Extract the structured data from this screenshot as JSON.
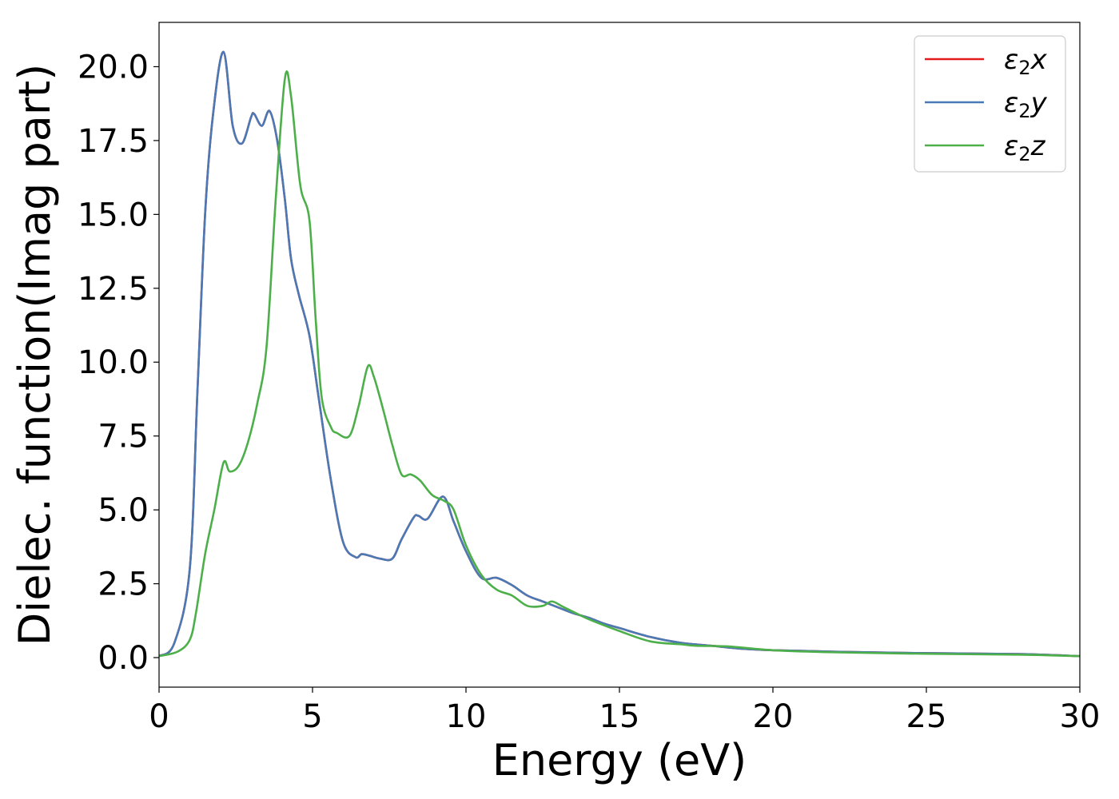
{
  "chart_data": {
    "type": "line",
    "xlabel": "Energy (eV)",
    "ylabel": "Dielec. function(Imag part)",
    "xlim": [
      0,
      30
    ],
    "ylim": [
      -1.0,
      21.5
    ],
    "xticks": [
      0,
      5,
      10,
      15,
      20,
      25,
      30
    ],
    "xtick_labels": [
      "0",
      "5",
      "10",
      "15",
      "20",
      "25",
      "30"
    ],
    "yticks": [
      0,
      2.5,
      5,
      7.5,
      10,
      12.5,
      15,
      17.5,
      20
    ],
    "ytick_labels": [
      "0.0",
      "2.5",
      "5.0",
      "7.5",
      "10.0",
      "12.5",
      "15.0",
      "17.5",
      "20.0"
    ],
    "grid": false,
    "legend_position": "top-right",
    "series": [
      {
        "name": "ε2x",
        "legend_base": "ε",
        "legend_sub": "2",
        "legend_var": "x",
        "color": "#e41a1c",
        "x": [
          0,
          0.5,
          1.0,
          1.25,
          1.5,
          1.75,
          2.1,
          2.4,
          2.7,
          3.0,
          3.1,
          3.35,
          3.6,
          3.85,
          4.1,
          4.3,
          4.55,
          4.9,
          5.2,
          5.6,
          6.0,
          6.4,
          6.6,
          6.85,
          7.2,
          7.6,
          7.9,
          8.3,
          8.45,
          8.75,
          9.25,
          9.6,
          10.0,
          10.5,
          11.0,
          11.5,
          12.0,
          12.5,
          13.0,
          13.5,
          14.0,
          14.5,
          15.0,
          16.0,
          17.0,
          18.0,
          19.0,
          20.0,
          22.0,
          25.0,
          28.0,
          30.0
        ],
        "values": [
          0.05,
          0.5,
          3.0,
          9.0,
          15.0,
          18.3,
          20.5,
          18.0,
          17.4,
          18.3,
          18.4,
          18.0,
          18.5,
          17.5,
          15.5,
          13.5,
          12.3,
          10.9,
          8.8,
          6.0,
          3.9,
          3.4,
          3.5,
          3.45,
          3.35,
          3.35,
          4.0,
          4.75,
          4.8,
          4.7,
          5.45,
          4.6,
          3.6,
          2.7,
          2.7,
          2.45,
          2.1,
          1.9,
          1.7,
          1.5,
          1.35,
          1.15,
          1.0,
          0.7,
          0.5,
          0.4,
          0.3,
          0.25,
          0.2,
          0.15,
          0.12,
          0.05
        ]
      },
      {
        "name": "ε2y",
        "legend_base": "ε",
        "legend_sub": "2",
        "legend_var": "y",
        "color": "#4a7ab5",
        "x": [
          0,
          0.5,
          1.0,
          1.25,
          1.5,
          1.75,
          2.1,
          2.4,
          2.7,
          3.0,
          3.1,
          3.35,
          3.6,
          3.85,
          4.1,
          4.3,
          4.55,
          4.9,
          5.2,
          5.6,
          6.0,
          6.4,
          6.6,
          6.85,
          7.2,
          7.6,
          7.9,
          8.3,
          8.45,
          8.75,
          9.25,
          9.6,
          10.0,
          10.5,
          11.0,
          11.5,
          12.0,
          12.5,
          13.0,
          13.5,
          14.0,
          14.5,
          15.0,
          16.0,
          17.0,
          18.0,
          19.0,
          20.0,
          22.0,
          25.0,
          28.0,
          30.0
        ],
        "values": [
          0.05,
          0.5,
          3.0,
          9.0,
          15.0,
          18.3,
          20.5,
          18.0,
          17.4,
          18.3,
          18.4,
          18.0,
          18.5,
          17.5,
          15.5,
          13.5,
          12.3,
          10.9,
          8.8,
          6.0,
          3.9,
          3.4,
          3.5,
          3.45,
          3.35,
          3.35,
          4.0,
          4.75,
          4.8,
          4.7,
          5.45,
          4.6,
          3.6,
          2.7,
          2.7,
          2.45,
          2.1,
          1.9,
          1.7,
          1.5,
          1.35,
          1.15,
          1.0,
          0.7,
          0.5,
          0.4,
          0.3,
          0.25,
          0.2,
          0.15,
          0.12,
          0.05
        ]
      },
      {
        "name": "ε2z",
        "legend_base": "ε",
        "legend_sub": "2",
        "legend_var": "z",
        "color": "#4daf4a",
        "x": [
          0,
          0.6,
          1.0,
          1.2,
          1.5,
          1.8,
          2.1,
          2.3,
          2.6,
          2.9,
          3.2,
          3.5,
          3.8,
          4.1,
          4.3,
          4.6,
          4.9,
          5.1,
          5.3,
          5.6,
          5.8,
          6.2,
          6.5,
          6.8,
          7.0,
          7.3,
          7.6,
          7.9,
          8.2,
          8.5,
          8.9,
          9.3,
          9.6,
          10.0,
          10.5,
          11.0,
          11.5,
          12.0,
          12.5,
          12.8,
          13.2,
          14.0,
          15.0,
          16.0,
          17.0,
          17.5,
          18.5,
          20.0,
          22.0,
          25.0,
          28.0,
          30.0
        ],
        "values": [
          0.05,
          0.2,
          0.6,
          1.5,
          3.5,
          5.0,
          6.6,
          6.3,
          6.5,
          7.3,
          8.6,
          10.5,
          15.5,
          19.6,
          19.0,
          16.0,
          14.8,
          11.5,
          8.8,
          7.8,
          7.6,
          7.5,
          8.5,
          9.85,
          9.5,
          8.4,
          7.2,
          6.2,
          6.2,
          6.0,
          5.5,
          5.3,
          5.0,
          3.8,
          2.8,
          2.3,
          2.1,
          1.75,
          1.75,
          1.9,
          1.7,
          1.3,
          0.9,
          0.55,
          0.45,
          0.4,
          0.38,
          0.25,
          0.18,
          0.13,
          0.1,
          0.05
        ]
      }
    ]
  }
}
